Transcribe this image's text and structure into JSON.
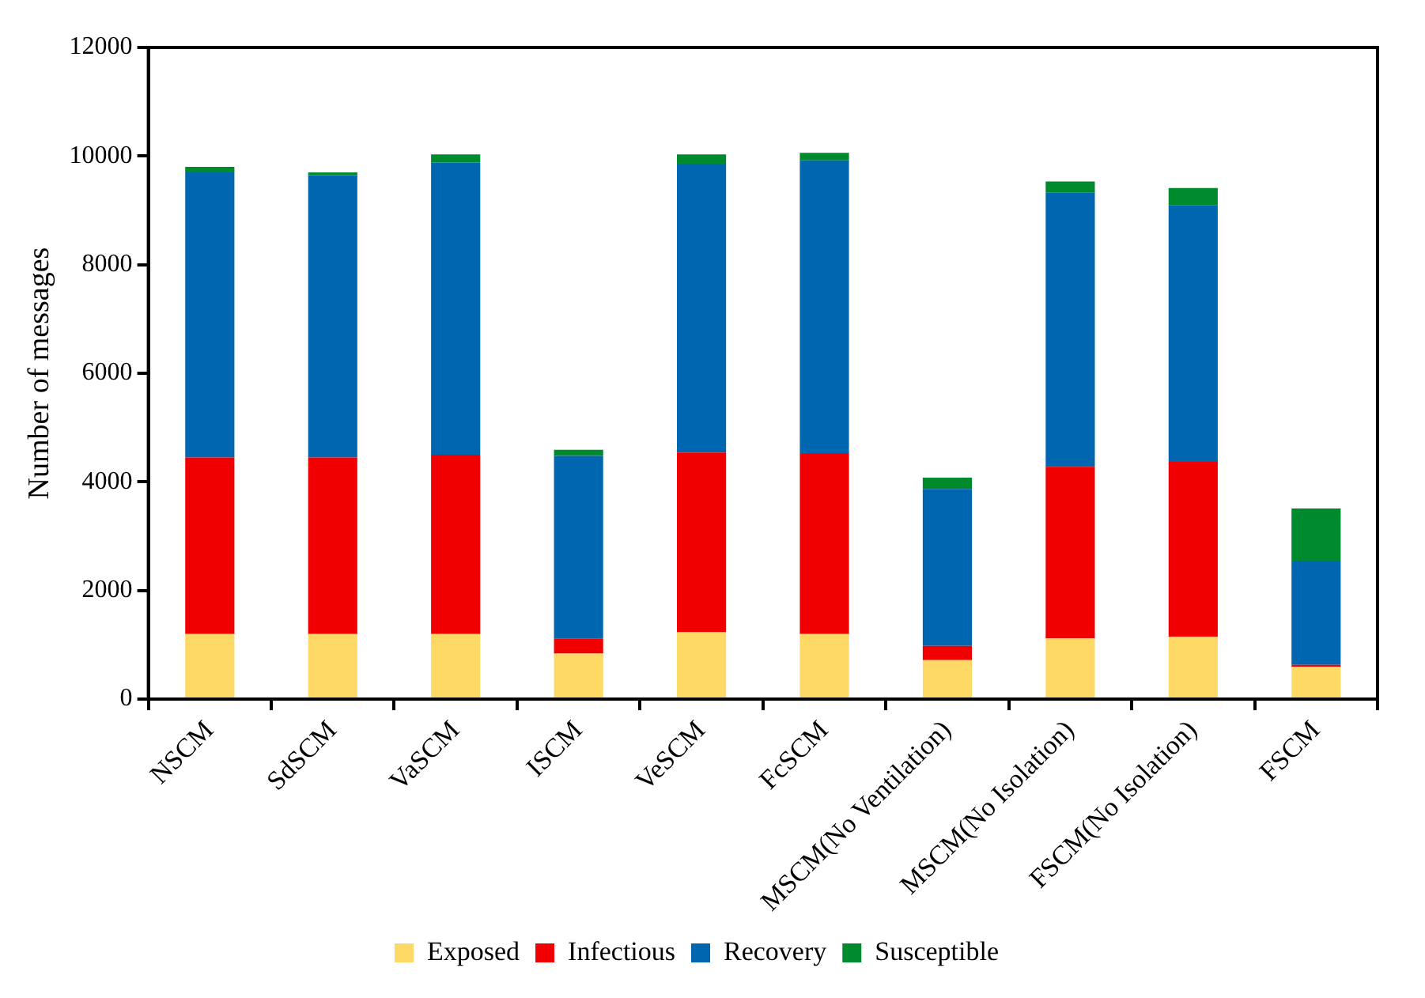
{
  "chart_data": {
    "type": "bar",
    "stacked": true,
    "ylabel": "Number of messages",
    "categories": [
      "NSCM",
      "SdSCM",
      "VaSCM",
      "ISCM",
      "VeSCM",
      "FcSCM",
      "MSCM(No Ventilation)",
      "MSCM(No Isolation)",
      "FSCM(No Isolation)",
      "FSCM"
    ],
    "series": [
      {
        "name": "Exposed",
        "color": "#ffd966",
        "values": [
          1200,
          1200,
          1200,
          840,
          1230,
          1200,
          720,
          1120,
          1150,
          600
        ]
      },
      {
        "name": "Infectious",
        "color": "#f00000",
        "values": [
          3250,
          3250,
          3300,
          280,
          3310,
          3330,
          260,
          3160,
          3220,
          30
        ]
      },
      {
        "name": "Recovery",
        "color": "#0066b0",
        "values": [
          5250,
          5200,
          5380,
          3360,
          5320,
          5390,
          2890,
          5050,
          4730,
          1920
        ]
      },
      {
        "name": "Susceptible",
        "color": "#008a2e",
        "values": [
          100,
          50,
          150,
          110,
          170,
          140,
          210,
          200,
          310,
          960
        ]
      }
    ],
    "ylim": [
      0,
      12000
    ],
    "yticks": [
      0,
      2000,
      4000,
      6000,
      8000,
      10000,
      12000
    ],
    "grid": false,
    "legend": "bottom"
  }
}
